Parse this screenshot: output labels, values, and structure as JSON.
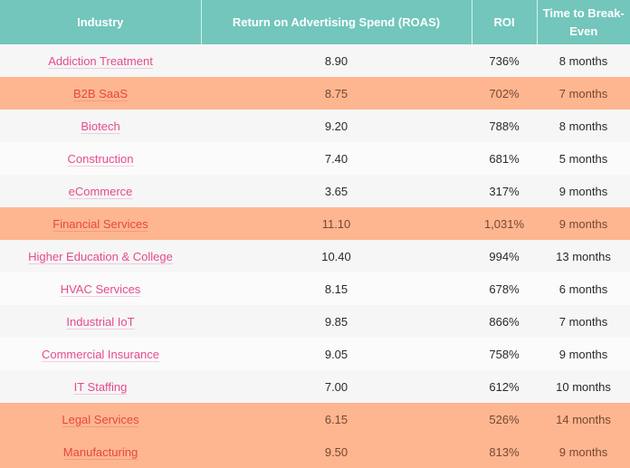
{
  "table": {
    "headers": [
      "Industry",
      "Return on Advertising Spend (ROAS)",
      "ROI",
      "Time to Break-Even"
    ],
    "highlight_color": "#fdb690",
    "header_color": "#72c6bb",
    "rows": [
      {
        "industry": "Addiction Treatment",
        "roas": "8.90",
        "roi": "736%",
        "breakeven": "8 months",
        "highlight": false
      },
      {
        "industry": "B2B SaaS",
        "roas": "8.75",
        "roi": "702%",
        "breakeven": "7 months",
        "highlight": true
      },
      {
        "industry": "Biotech",
        "roas": "9.20",
        "roi": "788%",
        "breakeven": "8 months",
        "highlight": false
      },
      {
        "industry": "Construction",
        "roas": "7.40",
        "roi": "681%",
        "breakeven": "5 months",
        "highlight": false
      },
      {
        "industry": "eCommerce",
        "roas": "3.65",
        "roi": "317%",
        "breakeven": "9 months",
        "highlight": false
      },
      {
        "industry": "Financial Services",
        "roas": "11.10",
        "roi": "1,031%",
        "breakeven": "9 months",
        "highlight": true
      },
      {
        "industry": "Higher Education & College",
        "roas": "10.40",
        "roi": "994%",
        "breakeven": "13 months",
        "highlight": false
      },
      {
        "industry": "HVAC Services",
        "roas": "8.15",
        "roi": "678%",
        "breakeven": "6 months",
        "highlight": false
      },
      {
        "industry": "Industrial IoT",
        "roas": "9.85",
        "roi": "866%",
        "breakeven": "7 months",
        "highlight": false
      },
      {
        "industry": "Commercial Insurance",
        "roas": "9.05",
        "roi": "758%",
        "breakeven": "9 months",
        "highlight": false
      },
      {
        "industry": "IT Staffing",
        "roas": "7.00",
        "roi": "612%",
        "breakeven": "10 months",
        "highlight": false
      },
      {
        "industry": "Legal Services",
        "roas": "6.15",
        "roi": "526%",
        "breakeven": "14 months",
        "highlight": true
      },
      {
        "industry": "Manufacturing",
        "roas": "9.50",
        "roi": "813%",
        "breakeven": "9 months",
        "highlight": true
      }
    ]
  }
}
